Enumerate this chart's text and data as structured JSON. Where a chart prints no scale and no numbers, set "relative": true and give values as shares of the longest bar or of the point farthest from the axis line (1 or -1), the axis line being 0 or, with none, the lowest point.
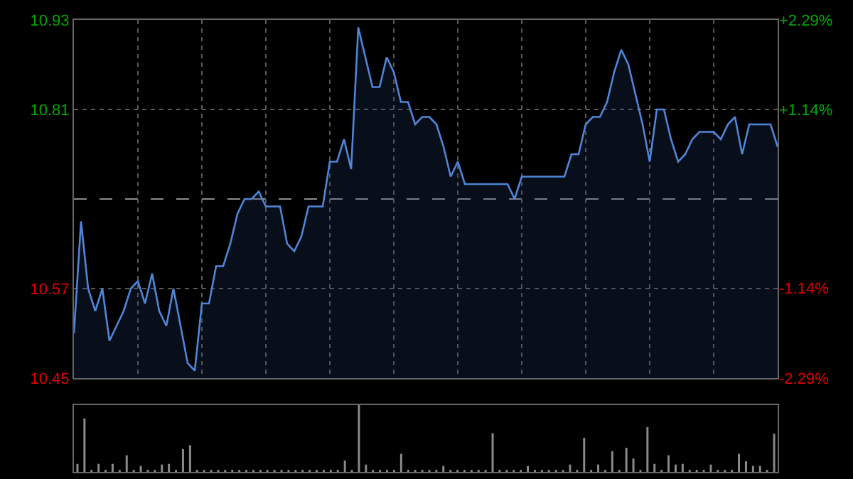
{
  "chart_data": [
    {
      "type": "area",
      "color": "#4f86d8",
      "categories": [
        null,
        null,
        null,
        null,
        null,
        null,
        null,
        null,
        null,
        null,
        null,
        null,
        null,
        null,
        null,
        null,
        null,
        null,
        null,
        null,
        null,
        null,
        null,
        null,
        null,
        null,
        null,
        null,
        null,
        null,
        null,
        null,
        null,
        null,
        null,
        null,
        null,
        null,
        null,
        null,
        null,
        null,
        null,
        null,
        null,
        null,
        null,
        null,
        null,
        null,
        null,
        null,
        null,
        null,
        null,
        null,
        null,
        null,
        null,
        null,
        null,
        null,
        null,
        null,
        null,
        null,
        null,
        null,
        null,
        null,
        null,
        null,
        null,
        null,
        null,
        null,
        null,
        null,
        null,
        null,
        null,
        null,
        null,
        null,
        null,
        null,
        null,
        null,
        null,
        null,
        null,
        null,
        null,
        null,
        null,
        null,
        null,
        null,
        null,
        null
      ],
      "values": [
        10.51,
        10.66,
        10.57,
        10.54,
        10.57,
        10.5,
        10.52,
        10.54,
        10.57,
        10.58,
        10.55,
        10.59,
        10.54,
        10.52,
        10.57,
        10.52,
        10.47,
        10.46,
        10.55,
        10.55,
        10.6,
        10.6,
        10.63,
        10.67,
        10.69,
        10.69,
        10.7,
        10.68,
        10.68,
        10.68,
        10.63,
        10.62,
        10.64,
        10.68,
        10.68,
        10.68,
        10.74,
        10.74,
        10.77,
        10.73,
        10.92,
        10.88,
        10.84,
        10.84,
        10.88,
        10.86,
        10.82,
        10.82,
        10.79,
        10.8,
        10.8,
        10.79,
        10.76,
        10.72,
        10.74,
        10.71,
        10.71,
        10.71,
        10.71,
        10.71,
        10.71,
        10.71,
        10.69,
        10.72,
        10.72,
        10.72,
        10.72,
        10.72,
        10.72,
        10.72,
        10.75,
        10.75,
        10.79,
        10.8,
        10.8,
        10.82,
        10.86,
        10.89,
        10.87,
        10.83,
        10.79,
        10.74,
        10.81,
        10.81,
        10.77,
        10.74,
        10.75,
        10.77,
        10.78,
        10.78,
        10.78,
        10.77,
        10.79,
        10.8,
        10.75,
        10.79,
        10.79,
        10.79,
        10.79,
        10.76
      ],
      "ylim": [
        10.45,
        10.93
      ],
      "yticks": [
        10.45,
        10.57,
        10.81,
        10.93
      ],
      "y2lim": [
        -2.29,
        2.29
      ],
      "y2ticks": [
        {
          "value": -2.29,
          "label": "-2.29%"
        },
        {
          "value": -1.14,
          "label": "-1.14%"
        },
        {
          "value": 1.14,
          "label": "+1.14%"
        },
        {
          "value": 2.29,
          "label": "+2.29%"
        }
      ],
      "ref_lines": [
        {
          "axis": "y",
          "value": 10.69,
          "color": "#8c8c8c",
          "line_style": "dashed"
        }
      ],
      "grid": true,
      "marker": "none"
    },
    {
      "type": "bar",
      "color": "#8a8a8a",
      "categories": [
        null,
        null,
        null,
        null,
        null,
        null,
        null,
        null,
        null,
        null,
        null,
        null,
        null,
        null,
        null,
        null,
        null,
        null,
        null,
        null,
        null,
        null,
        null,
        null,
        null,
        null,
        null,
        null,
        null,
        null,
        null,
        null,
        null,
        null,
        null,
        null,
        null,
        null,
        null,
        null,
        null,
        null,
        null,
        null,
        null,
        null,
        null,
        null,
        null,
        null,
        null,
        null,
        null,
        null,
        null,
        null,
        null,
        null,
        null,
        null,
        null,
        null,
        null,
        null,
        null,
        null,
        null,
        null,
        null,
        null,
        null,
        null,
        null,
        null,
        null,
        null,
        null,
        null,
        null,
        null,
        null,
        null,
        null,
        null,
        null,
        null,
        null,
        null,
        null,
        null,
        null,
        null,
        null,
        null,
        null,
        null,
        null,
        null,
        null,
        null
      ],
      "values": [
        0.12,
        0.8,
        0.03,
        0.12,
        0.03,
        0.12,
        0.03,
        0.25,
        0.03,
        0.09,
        0.03,
        0.03,
        0.11,
        0.12,
        0.03,
        0.34,
        0.4,
        0.03,
        0.03,
        0.03,
        0.03,
        0.03,
        0.03,
        0.03,
        0.03,
        0.03,
        0.03,
        0.03,
        0.03,
        0.03,
        0.03,
        0.03,
        0.03,
        0.03,
        0.03,
        0.03,
        0.03,
        0.03,
        0.17,
        0.03,
        1,
        0.11,
        0.03,
        0.03,
        0.03,
        0.03,
        0.27,
        0.03,
        0.03,
        0.03,
        0.03,
        0.03,
        0.09,
        0.03,
        0.03,
        0.03,
        0.03,
        0.03,
        0.03,
        0.58,
        0.03,
        0.03,
        0.03,
        0.03,
        0.09,
        0.03,
        0.03,
        0.03,
        0.03,
        0.03,
        0.11,
        0.03,
        0.51,
        0.03,
        0.11,
        0.03,
        0.31,
        0.03,
        0.36,
        0.2,
        0.03,
        0.67,
        0.12,
        0.03,
        0.25,
        0.11,
        0.12,
        0.03,
        0.03,
        0.03,
        0.11,
        0.03,
        0.03,
        0.03,
        0.27,
        0.16,
        0.09,
        0.09,
        0.03,
        0.57
      ],
      "relative": true
    }
  ]
}
